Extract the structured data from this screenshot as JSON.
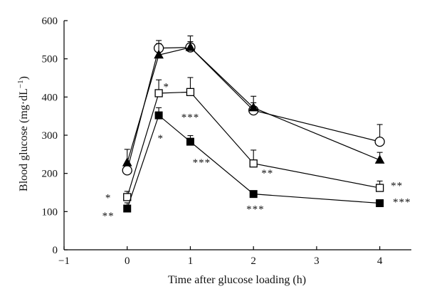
{
  "chart_data": {
    "type": "line",
    "title": "",
    "xlabel": "Time after glucose loading (h)",
    "ylabel_main": "Blood glucose (mg·dL",
    "ylabel_sup": "−1",
    "ylabel_close": ")",
    "xlim": [
      -1,
      4.5
    ],
    "ylim": [
      0,
      600
    ],
    "x_ticks": [
      -1,
      0,
      1,
      2,
      3,
      4
    ],
    "x_tick_labels": [
      "−1",
      "0",
      "1",
      "2",
      "3",
      "4"
    ],
    "y_ticks": [
      0,
      100,
      200,
      300,
      400,
      500,
      600
    ],
    "y_tick_labels": [
      "0",
      "100",
      "200",
      "300",
      "400",
      "500",
      "600"
    ],
    "grid": false,
    "series": [
      {
        "marker": "open-circle",
        "x": [
          0,
          0.5,
          1,
          2,
          4
        ],
        "y": [
          208,
          528,
          530,
          365,
          283
        ],
        "err": [
          15,
          20,
          15,
          20,
          45
        ]
      },
      {
        "marker": "filled-triangle",
        "x": [
          0,
          0.5,
          1,
          2,
          4
        ],
        "y": [
          228,
          510,
          530,
          372,
          235
        ],
        "err": [
          35,
          30,
          30,
          30,
          20
        ]
      },
      {
        "marker": "open-square",
        "x": [
          0,
          0.5,
          1,
          2,
          4
        ],
        "y": [
          138,
          410,
          413,
          226,
          162
        ],
        "err": [
          15,
          35,
          38,
          35,
          18
        ]
      },
      {
        "marker": "filled-square",
        "x": [
          0,
          0.5,
          1,
          2,
          4
        ],
        "y": [
          108,
          352,
          283,
          146,
          122
        ],
        "err": [
          15,
          20,
          16,
          5,
          6
        ]
      }
    ],
    "annotations": [
      {
        "text": "*",
        "x": -0.3,
        "y": 128
      },
      {
        "text": "**",
        "x": -0.3,
        "y": 80
      },
      {
        "text": "*",
        "x": 0.62,
        "y": 418
      },
      {
        "text": "*",
        "x": 0.53,
        "y": 283
      },
      {
        "text": "***",
        "x": 1.0,
        "y": 338
      },
      {
        "text": "***",
        "x": 1.18,
        "y": 220
      },
      {
        "text": "**",
        "x": 2.22,
        "y": 192
      },
      {
        "text": "***",
        "x": 2.03,
        "y": 98
      },
      {
        "text": "**",
        "x": 4.27,
        "y": 159
      },
      {
        "text": "***",
        "x": 4.35,
        "y": 116
      }
    ]
  }
}
